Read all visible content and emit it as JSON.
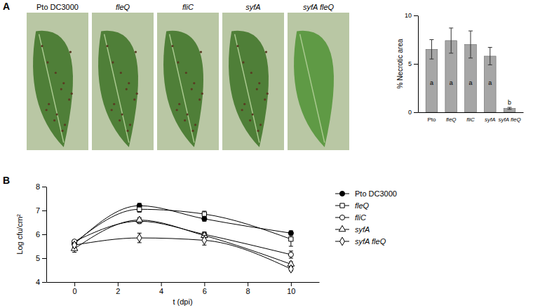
{
  "panel_labels": [
    "A",
    "B"
  ],
  "photos": {
    "labels": [
      "Pto DC3000",
      "fleQ",
      "fliC",
      "syfA",
      "syfA fleQ"
    ]
  },
  "chart_data": [
    {
      "type": "bar",
      "categories": [
        "Pto",
        "fleQ",
        "fliC",
        "syfA",
        "syfA fleQ"
      ],
      "values": [
        6.5,
        7.4,
        7.0,
        5.8,
        0.4
      ],
      "errors": [
        1.0,
        1.3,
        1.4,
        0.9,
        0.1
      ],
      "annotations": [
        "a",
        "a",
        "a",
        "a",
        "b"
      ],
      "ylabel": "% Necrotic area",
      "ylim": [
        0,
        10
      ],
      "yticks": [
        0,
        5,
        10
      ],
      "color": "#a6a6a6"
    },
    {
      "type": "line",
      "x": [
        0,
        3,
        6,
        10
      ],
      "xlabel": "t (dpi)",
      "ylabel": "Log cfu/cm²",
      "xlim": [
        -1.3,
        11.3
      ],
      "xticks": [
        0,
        2,
        4,
        6,
        8,
        10
      ],
      "ylim": [
        4,
        8
      ],
      "yticks": [
        4,
        5,
        6,
        7,
        8
      ],
      "legend": "right",
      "series": [
        {
          "name": "Pto DC3000",
          "color": "#000000",
          "marker": "circle-filled",
          "values": [
            5.6,
            7.2,
            6.65,
            6.05
          ],
          "errors": [
            0.1,
            0.1,
            0.1,
            0.1
          ]
        },
        {
          "name": "fleQ",
          "color": "#000000",
          "marker": "square-open",
          "values": [
            5.65,
            7.05,
            6.85,
            5.8
          ],
          "errors": [
            0.05,
            0.12,
            0.12,
            0.3
          ]
        },
        {
          "name": "fliC",
          "color": "#000000",
          "marker": "circle-open",
          "values": [
            5.7,
            6.55,
            6.0,
            5.15
          ],
          "errors": [
            0.05,
            0.1,
            0.1,
            0.15
          ]
        },
        {
          "name": "syfA",
          "color": "#000000",
          "marker": "triangle-open",
          "values": [
            5.4,
            6.6,
            5.95,
            4.75
          ],
          "errors": [
            0.15,
            0.1,
            0.1,
            0.1
          ]
        },
        {
          "name": "syfA fleQ",
          "color": "#000000",
          "marker": "diamond-open",
          "values": [
            5.55,
            5.85,
            5.75,
            4.55
          ],
          "errors": [
            0.1,
            0.2,
            0.2,
            0.08
          ]
        }
      ]
    }
  ]
}
